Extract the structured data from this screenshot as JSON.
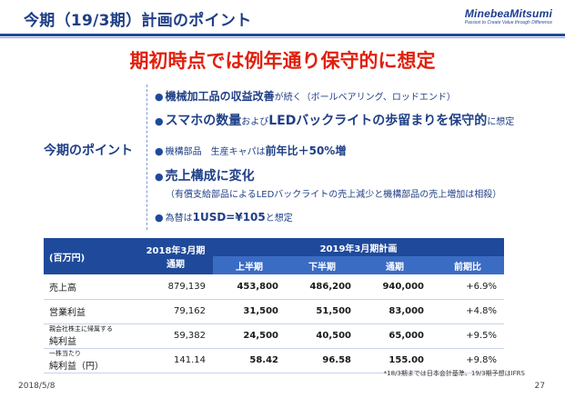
{
  "header": {
    "title": "今期（19/3期）計画のポイント",
    "logo_name": "MinebeaMitsumi",
    "logo_tagline": "Passion to Create Value through Difference",
    "accent_color": "#1f4a9b"
  },
  "headline": "期初時点では例年通り保守的に想定",
  "side_label": "今期のポイント",
  "points": [
    {
      "bold": "機械加工品の収益改善",
      "rest": "が続く（ボールベアリング、ロッドエンド）"
    },
    {
      "bold1": "スマホの数量",
      "mid1": "および",
      "bold2": "LEDバックライトの歩留まりを保守的",
      "rest": "に想定"
    },
    {
      "small1": "機構部品　生産キャパ",
      "mid1": "は",
      "bold1": "前年比＋50%増"
    },
    {
      "bold": "売上構成に変化",
      "note": "（有償支給部品によるLEDバックライトの売上減少と機構部品の売上増加は相殺）"
    },
    {
      "small1": "為替",
      "mid1": "は",
      "bold1": "1USD=¥105",
      "rest": "と想定"
    }
  ],
  "table": {
    "unit_header": "(百万円)",
    "prev_header_line1": "2018年3月期",
    "prev_header_line2": "通期",
    "plan_header": "2019年3月期計画",
    "sub_headers": [
      "上半期",
      "下半期",
      "通期",
      "前期比"
    ],
    "rows": [
      {
        "label1": "売上高",
        "label2": "",
        "prev": "879,139",
        "h1": "453,800",
        "h2": "486,200",
        "full": "940,000",
        "yoy": "+6.9%"
      },
      {
        "label1": "営業利益",
        "label2": "",
        "prev": "79,162",
        "h1": "31,500",
        "h2": "51,500",
        "full": "83,000",
        "yoy": "+4.8%"
      },
      {
        "label1": "親会社株主に帰属する",
        "label2": "純利益",
        "prev": "59,382",
        "h1": "24,500",
        "h2": "40,500",
        "full": "65,000",
        "yoy": "+9.5%"
      },
      {
        "label1": "一株当たり",
        "label2": "純利益（円）",
        "prev": "141.14",
        "h1": "58.42",
        "h2": "96.58",
        "full": "155.00",
        "yoy": "+9.8%"
      }
    ]
  },
  "footnote": "*18/3期までは日本会計基準、19/3期予想はIFRS",
  "date": "2018/5/8",
  "page_number": "27"
}
